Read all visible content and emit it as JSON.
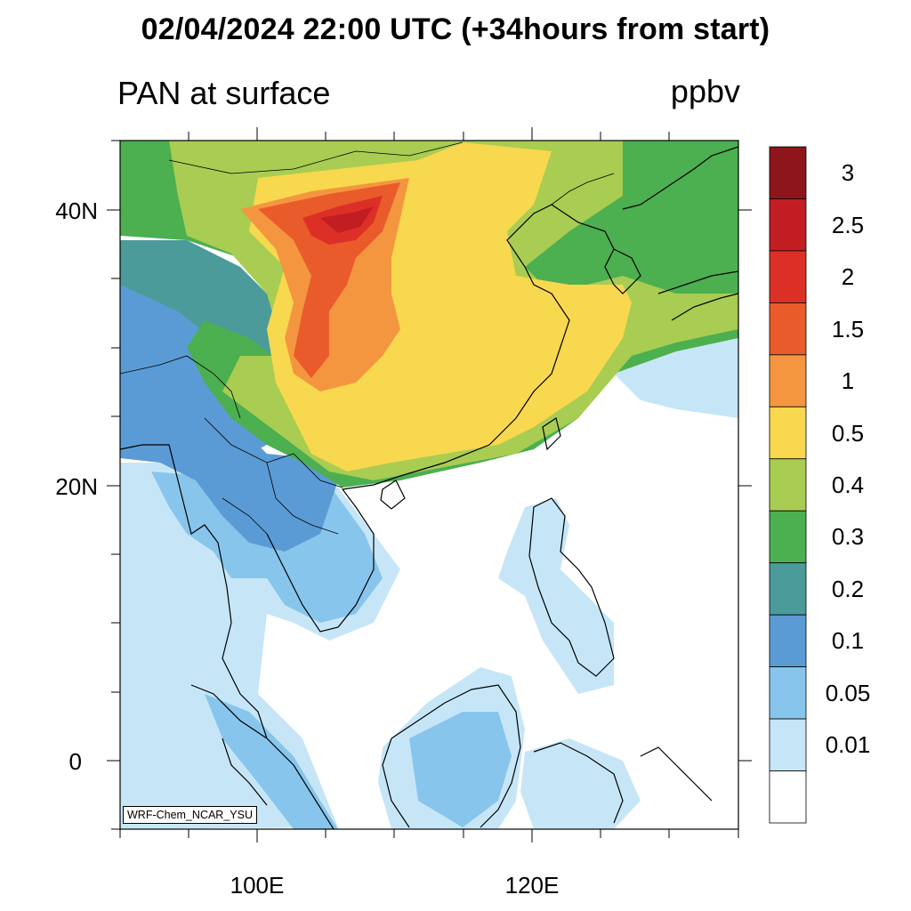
{
  "title": "02/04/2024 22:00 UTC (+34hours from start)",
  "subtitle": "PAN at surface",
  "units": "ppbv",
  "credit": "WRF-Chem_NCAR_YSU",
  "map": {
    "lat_ticks": [
      "40N",
      "20N",
      "0"
    ],
    "lon_ticks": [
      "100E",
      "120E"
    ]
  },
  "colorbar": {
    "labels": [
      "3",
      "2.5",
      "2",
      "1.5",
      "1",
      "0.5",
      "0.4",
      "0.3",
      "0.2",
      "0.1",
      "0.05",
      "0.01"
    ],
    "colors": [
      "#8e1519",
      "#c31d24",
      "#dc3027",
      "#ea5b2b",
      "#f49640",
      "#f8d84e",
      "#a8cd52",
      "#4caf50",
      "#4b9b9b",
      "#5b9bd5",
      "#88c5ec",
      "#c6e6f8",
      "#ffffff"
    ]
  }
}
